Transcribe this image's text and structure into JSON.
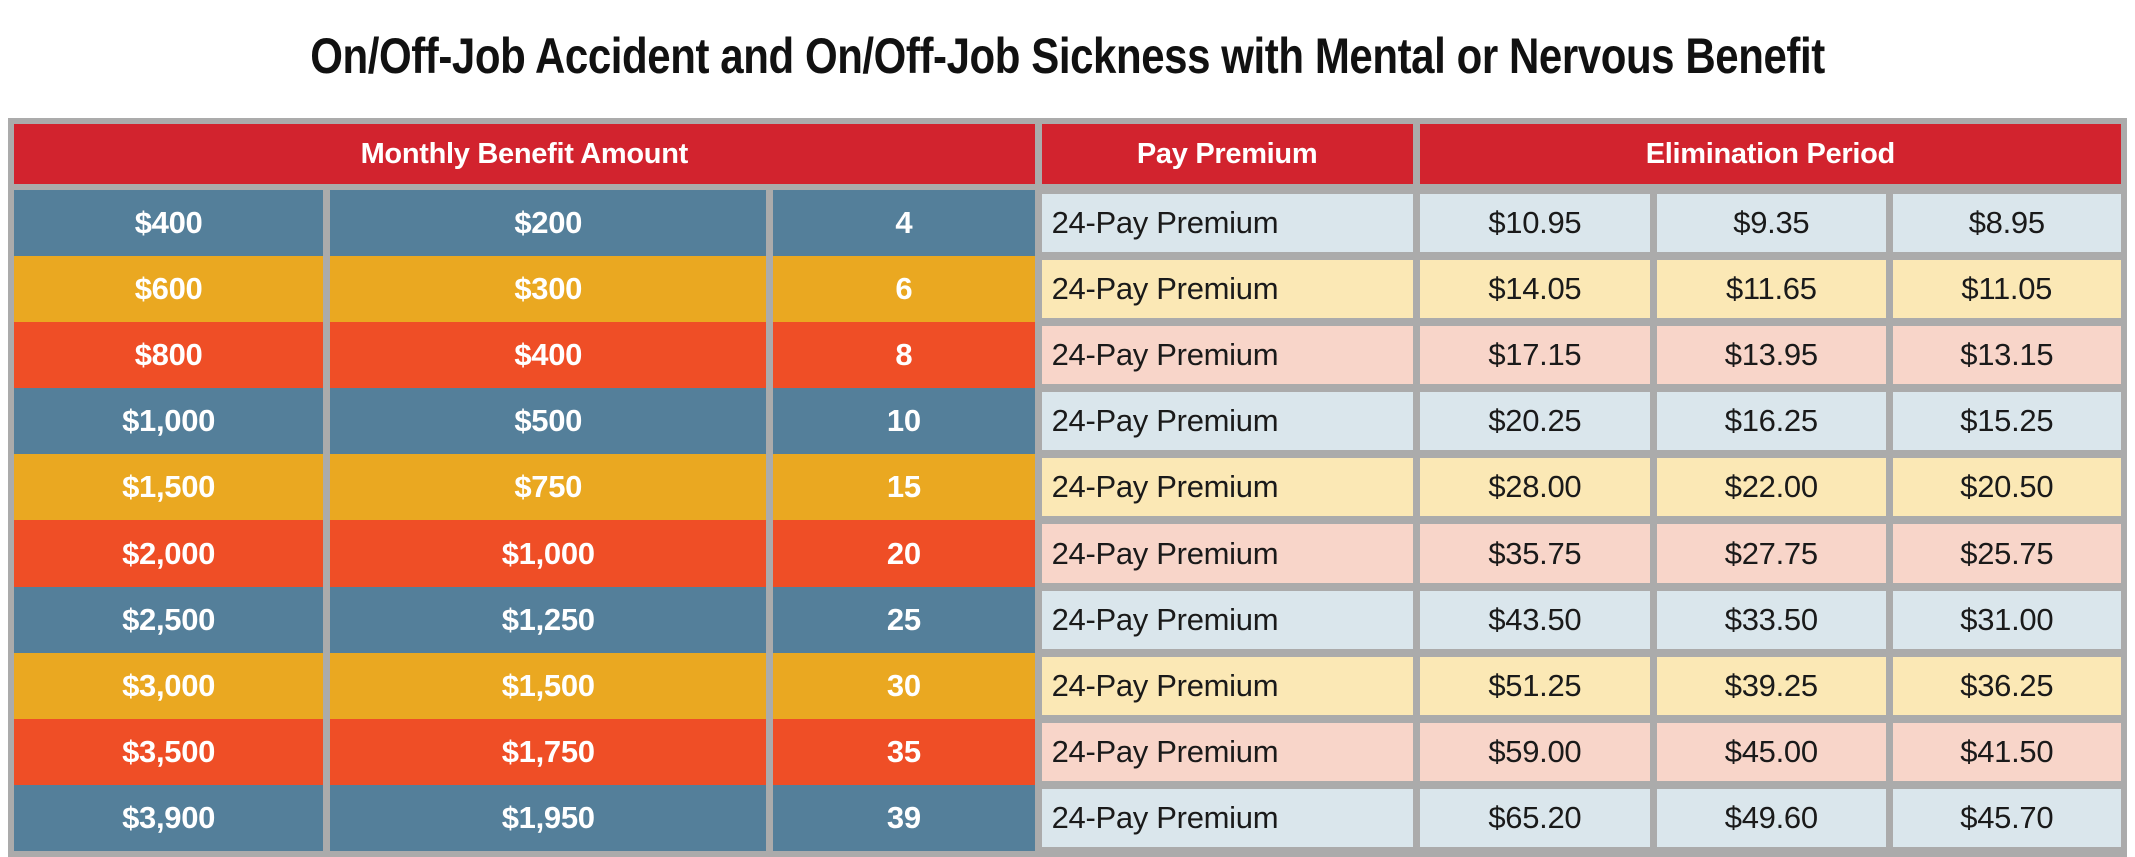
{
  "title": "On/Off-Job Accident and On/Off-Job Sickness with Mental or Nervous Benefit",
  "colors": {
    "header_red": "#D2232E",
    "row_blue": "#547F9A",
    "row_gold": "#EAA821",
    "row_orange": "#EF4E26",
    "row_light_blue": "#DAE6EC",
    "row_light_yellow": "#FBE8B5",
    "row_light_pink": "#F8D5C9",
    "table_border_gray": "#ABABAB"
  },
  "table": {
    "headers": {
      "monthly_benefit": "Monthly Benefit Amount",
      "pay_premium": "Pay Premium",
      "elimination_period": "Elimination Period"
    },
    "rows": [
      {
        "theme": "blue",
        "amount1": "$400",
        "amount2": "$200",
        "units": "4",
        "pay_label": "24-Pay Premium",
        "premiums": [
          "$10.95",
          "$9.35",
          "$8.95"
        ]
      },
      {
        "theme": "gold",
        "amount1": "$600",
        "amount2": "$300",
        "units": "6",
        "pay_label": "24-Pay Premium",
        "premiums": [
          "$14.05",
          "$11.65",
          "$11.05"
        ]
      },
      {
        "theme": "orange",
        "amount1": "$800",
        "amount2": "$400",
        "units": "8",
        "pay_label": "24-Pay Premium",
        "premiums": [
          "$17.15",
          "$13.95",
          "$13.15"
        ]
      },
      {
        "theme": "blue",
        "amount1": "$1,000",
        "amount2": "$500",
        "units": "10",
        "pay_label": "24-Pay Premium",
        "premiums": [
          "$20.25",
          "$16.25",
          "$15.25"
        ]
      },
      {
        "theme": "gold",
        "amount1": "$1,500",
        "amount2": "$750",
        "units": "15",
        "pay_label": "24-Pay Premium",
        "premiums": [
          "$28.00",
          "$22.00",
          "$20.50"
        ]
      },
      {
        "theme": "orange",
        "amount1": "$2,000",
        "amount2": "$1,000",
        "units": "20",
        "pay_label": "24-Pay Premium",
        "premiums": [
          "$35.75",
          "$27.75",
          "$25.75"
        ]
      },
      {
        "theme": "blue",
        "amount1": "$2,500",
        "amount2": "$1,250",
        "units": "25",
        "pay_label": "24-Pay Premium",
        "premiums": [
          "$43.50",
          "$33.50",
          "$31.00"
        ]
      },
      {
        "theme": "gold",
        "amount1": "$3,000",
        "amount2": "$1,500",
        "units": "30",
        "pay_label": "24-Pay Premium",
        "premiums": [
          "$51.25",
          "$39.25",
          "$36.25"
        ]
      },
      {
        "theme": "orange",
        "amount1": "$3,500",
        "amount2": "$1,750",
        "units": "35",
        "pay_label": "24-Pay Premium",
        "premiums": [
          "$59.00",
          "$45.00",
          "$41.50"
        ]
      },
      {
        "theme": "blue",
        "amount1": "$3,900",
        "amount2": "$1,950",
        "units": "39",
        "pay_label": "24-Pay Premium",
        "premiums": [
          "$65.20",
          "$49.60",
          "$45.70"
        ]
      }
    ]
  }
}
